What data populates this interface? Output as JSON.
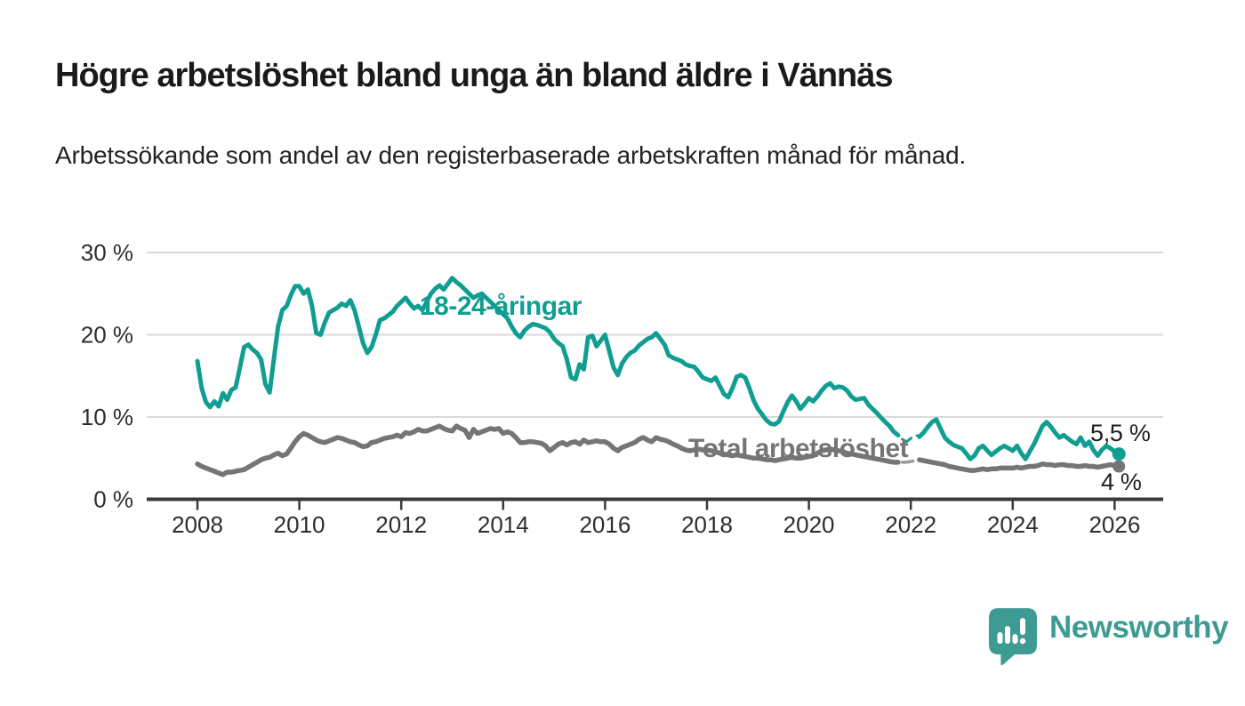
{
  "header": {
    "title": "Högre arbetslöshet bland unga än bland äldre i Vännäs",
    "subtitle": "Arbetssökande som andel av den registerbaserade arbetskraften månad för månad."
  },
  "footer": {
    "brand": "Newsworthy"
  },
  "colors": {
    "youth_line": "#119e92",
    "total_line": "#757575",
    "axis": "#3a3a3a",
    "gridline": "#d9d9d9",
    "tick_label": "#2d2d2d",
    "logo": "#3d9b94"
  },
  "chart_data": {
    "type": "line",
    "title": "Högre arbetslöshet bland unga än bland äldre i Vännäs",
    "subtitle": "Arbetssökande som andel av den registerbaserade arbetskraften månad för månad.",
    "unit": "%",
    "xlabel": "",
    "ylabel": "",
    "ylim": [
      0,
      30
    ],
    "xlim": [
      2007,
      2027
    ],
    "grid": "horizontal",
    "legend_position": "inline-labels",
    "x_axis": {
      "ticks": [
        {
          "value": 2008,
          "label": "2008"
        },
        {
          "value": 2010,
          "label": "2010"
        },
        {
          "value": 2012,
          "label": "2012"
        },
        {
          "value": 2014,
          "label": "2014"
        },
        {
          "value": 2016,
          "label": "2016"
        },
        {
          "value": 2018,
          "label": "2018"
        },
        {
          "value": 2020,
          "label": "2020"
        },
        {
          "value": 2022,
          "label": "2022"
        },
        {
          "value": 2024,
          "label": "2024"
        },
        {
          "value": 2026,
          "label": "2026"
        }
      ]
    },
    "y_axis": {
      "ticks": [
        {
          "value": 0,
          "label": "0 %"
        },
        {
          "value": 10,
          "label": "10 %"
        },
        {
          "value": 20,
          "label": "20 %"
        },
        {
          "value": 30,
          "label": "30 %"
        }
      ]
    },
    "series": [
      {
        "name": "18-24-åringar",
        "color": "#119e92",
        "end_label": "5,5 %",
        "end_value": 5.5,
        "segments": [
          {
            "style": "solid",
            "start_year": 2008.0,
            "step_months": 1,
            "values": [
              16.8,
              13.5,
              11.8,
              11.2,
              11.9,
              11.3,
              12.9,
              12.1,
              13.3,
              13.6,
              16.0,
              18.5,
              18.8,
              18.2,
              17.8,
              17.0,
              14.0,
              13.0,
              17.0,
              21.0,
              23.0,
              23.5,
              24.8,
              25.9,
              25.9,
              25.0,
              25.5,
              23.5,
              20.2,
              20.0,
              21.5,
              22.7,
              23.0,
              23.3,
              23.8,
              23.5,
              24.2,
              23.0,
              21.0,
              19.0,
              17.8,
              18.5,
              20.0,
              21.8,
              22.0,
              22.4,
              22.8,
              23.5,
              24.0,
              24.5,
              23.8,
              23.2,
              23.5,
              23.0,
              24.0,
              25.0,
              25.6,
              26.0,
              25.5,
              26.2,
              26.9,
              26.4,
              26.0,
              25.5,
              25.0,
              24.5,
              24.8,
              25.0,
              24.5,
              24.0,
              23.5,
              23.0,
              22.5,
              22.0,
              21.0,
              20.2,
              19.7,
              20.5,
              21.0,
              21.3,
              21.2,
              21.0,
              20.8,
              20.3,
              19.5,
              19.0,
              18.6,
              17.0,
              14.8,
              14.6,
              16.4,
              15.8,
              19.7,
              19.9,
              18.6,
              19.3,
              20.0,
              18.0,
              16.0,
              15.1,
              16.5,
              17.3,
              17.8,
              18.1,
              18.7,
              19.1,
              19.5,
              19.7,
              20.2,
              19.5,
              18.8,
              17.5,
              17.2,
              17.0,
              16.8,
              16.4,
              16.2,
              16.1,
              15.5,
              14.8,
              14.6,
              14.4,
              14.8,
              13.8,
              12.8,
              12.4,
              13.5,
              14.9,
              15.1,
              14.8,
              13.5,
              12.0,
              11.0,
              10.3,
              9.6,
              9.2,
              9.1,
              9.5,
              10.7,
              11.8,
              12.6,
              11.9,
              11.0,
              11.6,
              12.3,
              11.9,
              12.5,
              13.2,
              13.8,
              14.1,
              13.5,
              13.7,
              13.6,
              13.2,
              12.5,
              12.1,
              12.2,
              12.3,
              11.5,
              11.0,
              10.5,
              9.9,
              9.4,
              8.9,
              8.2,
              7.8
            ]
          },
          {
            "style": "dashed",
            "start_year": 2021.8333,
            "step_months": 1,
            "values": [
              7.3,
              7.0,
              7.4,
              7.9,
              7.6
            ]
          },
          {
            "style": "solid",
            "start_year": 2022.1667,
            "step_months": 1,
            "values": [
              7.6,
              8.1,
              8.8,
              9.4,
              9.7,
              8.6,
              7.5,
              7.0,
              6.6,
              6.4,
              6.2,
              5.6,
              4.9,
              5.3,
              6.2,
              6.5,
              5.9,
              5.4,
              5.8,
              6.2,
              6.5,
              6.2,
              5.9,
              6.5,
              5.6,
              4.9,
              5.8,
              6.7,
              7.8,
              8.9,
              9.4,
              8.8,
              8.1,
              7.5,
              7.8,
              7.4,
              7.0,
              6.7,
              7.5,
              6.5,
              7.0,
              6.0,
              5.3,
              6.0,
              6.5,
              6.2,
              5.8,
              5.5
            ]
          }
        ]
      },
      {
        "name": "Total arbetslöshet",
        "color": "#757575",
        "end_label": "4 %",
        "end_value": 4.0,
        "segments": [
          {
            "style": "solid",
            "start_year": 2008.0,
            "step_months": 1,
            "values": [
              4.3,
              4.0,
              3.8,
              3.6,
              3.4,
              3.2,
              3.0,
              3.3,
              3.3,
              3.4,
              3.5,
              3.6,
              3.9,
              4.2,
              4.5,
              4.8,
              5.0,
              5.1,
              5.4,
              5.6,
              5.3,
              5.5,
              6.2,
              7.0,
              7.6,
              8.0,
              7.8,
              7.5,
              7.2,
              7.0,
              6.9,
              7.1,
              7.3,
              7.5,
              7.4,
              7.2,
              7.0,
              6.9,
              6.6,
              6.4,
              6.5,
              6.9,
              7.0,
              7.2,
              7.4,
              7.5,
              7.6,
              7.8,
              7.6,
              8.1,
              8.0,
              8.2,
              8.5,
              8.3,
              8.3,
              8.5,
              8.7,
              8.9,
              8.6,
              8.4,
              8.3,
              8.9,
              8.6,
              8.4,
              7.5,
              8.5,
              8.0,
              8.2,
              8.4,
              8.6,
              8.5,
              8.6,
              8.0,
              8.2,
              8.0,
              7.5,
              6.9,
              6.9,
              7.0,
              7.0,
              6.9,
              6.8,
              6.5,
              5.9,
              6.3,
              6.7,
              6.9,
              6.6,
              6.9,
              7.0,
              6.7,
              7.2,
              6.9,
              7.0,
              7.1,
              7.0,
              7.0,
              6.7,
              6.2,
              5.9,
              6.3,
              6.5,
              6.7,
              6.9,
              7.3,
              7.5,
              7.2,
              7.0,
              7.5,
              7.3,
              7.2,
              7.0,
              6.7,
              6.5,
              6.2,
              6.0,
              5.9,
              6.0,
              6.1,
              6.0,
              6.0,
              5.9,
              5.8,
              5.6,
              5.5,
              5.4,
              5.3,
              5.4,
              5.3,
              5.2,
              5.1,
              5.0,
              5.0,
              4.9,
              4.8,
              4.8,
              4.7,
              4.8,
              4.9,
              5.0,
              5.1,
              5.0,
              5.0,
              5.1,
              5.2,
              5.3,
              5.6,
              5.9,
              6.0,
              6.1,
              6.0,
              5.9,
              5.8,
              5.6,
              5.5,
              5.4,
              5.3,
              5.2,
              5.1,
              5.0,
              4.9,
              4.8,
              4.7,
              4.6,
              4.5,
              4.5
            ]
          },
          {
            "style": "dashed",
            "start_year": 2021.8333,
            "step_months": 1,
            "values": [
              4.5,
              4.5,
              4.6,
              4.7,
              4.8
            ]
          },
          {
            "style": "solid",
            "start_year": 2022.1667,
            "step_months": 1,
            "values": [
              4.8,
              4.7,
              4.6,
              4.5,
              4.4,
              4.3,
              4.2,
              4.0,
              3.9,
              3.8,
              3.7,
              3.6,
              3.5,
              3.5,
              3.6,
              3.7,
              3.6,
              3.7,
              3.7,
              3.8,
              3.8,
              3.8,
              3.8,
              3.9,
              3.8,
              3.9,
              4.0,
              4.0,
              4.1,
              4.3,
              4.2,
              4.2,
              4.1,
              4.2,
              4.2,
              4.1,
              4.1,
              4.0,
              4.0,
              4.1,
              4.0,
              4.0,
              3.9,
              4.0,
              4.1,
              4.2,
              4.1,
              4.0
            ]
          }
        ]
      }
    ]
  }
}
